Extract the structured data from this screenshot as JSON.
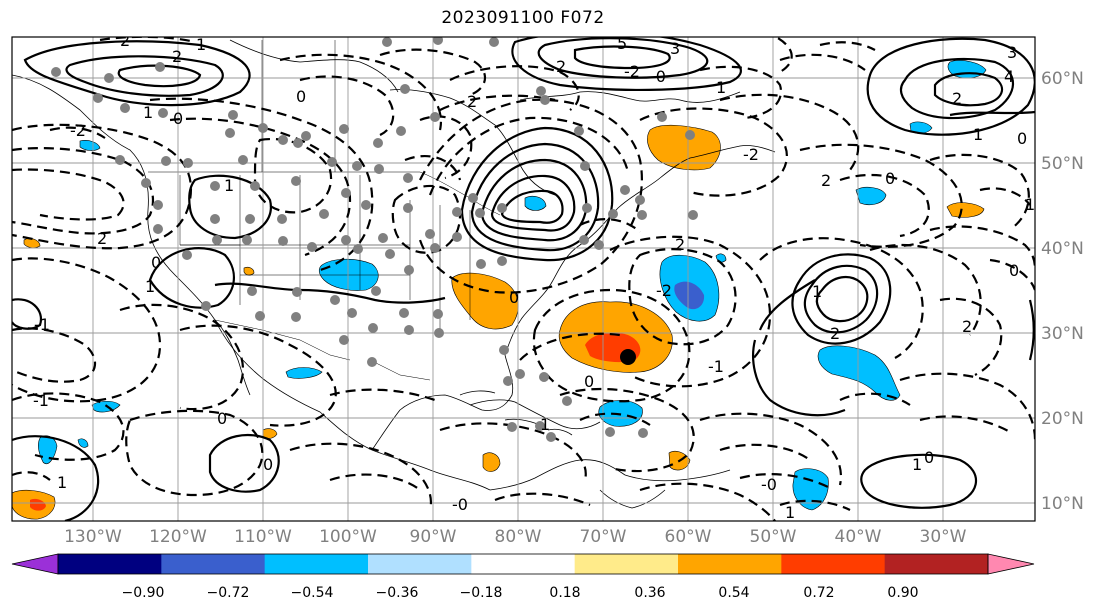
{
  "title": "2023091100 F072",
  "lon_labels": [
    "130°W",
    "120°W",
    "110°W",
    "100°W",
    "90°W",
    "80°W",
    "70°W",
    "60°W",
    "50°W",
    "40°W",
    "30°W"
  ],
  "lat_labels": [
    "60°N",
    "50°N",
    "40°N",
    "30°N",
    "20°N",
    "10°N"
  ],
  "colorbar": {
    "colors": [
      "#9b30d8",
      "#000080",
      "#3a5fcd",
      "#00bfff",
      "#b0e0ff",
      "#ffffff",
      "#ffeb8a",
      "#ffa500",
      "#ff3d00",
      "#b22222",
      "#ff88b0"
    ],
    "tick_labels": [
      "−0.90",
      "−0.72",
      "−0.54",
      "−0.36",
      "−0.18",
      "0.18",
      "0.36",
      "0.54",
      "0.72",
      "0.90"
    ]
  },
  "contour_labels": [
    "2",
    "2",
    "1",
    "0",
    "2",
    "1",
    "0",
    "-2",
    "1",
    "0",
    "5",
    "3",
    "2",
    "-2",
    "-0",
    "1",
    "4",
    "3",
    "2",
    "1",
    "0",
    "2",
    "1",
    "0",
    "2",
    "-2",
    "2",
    "-2",
    "1",
    "2",
    "0",
    "0",
    "-1",
    "0",
    "2",
    "1",
    "0",
    "-0",
    "1",
    "0",
    "-1",
    "0",
    "-0",
    "1",
    "1",
    "-1",
    "1"
  ]
}
